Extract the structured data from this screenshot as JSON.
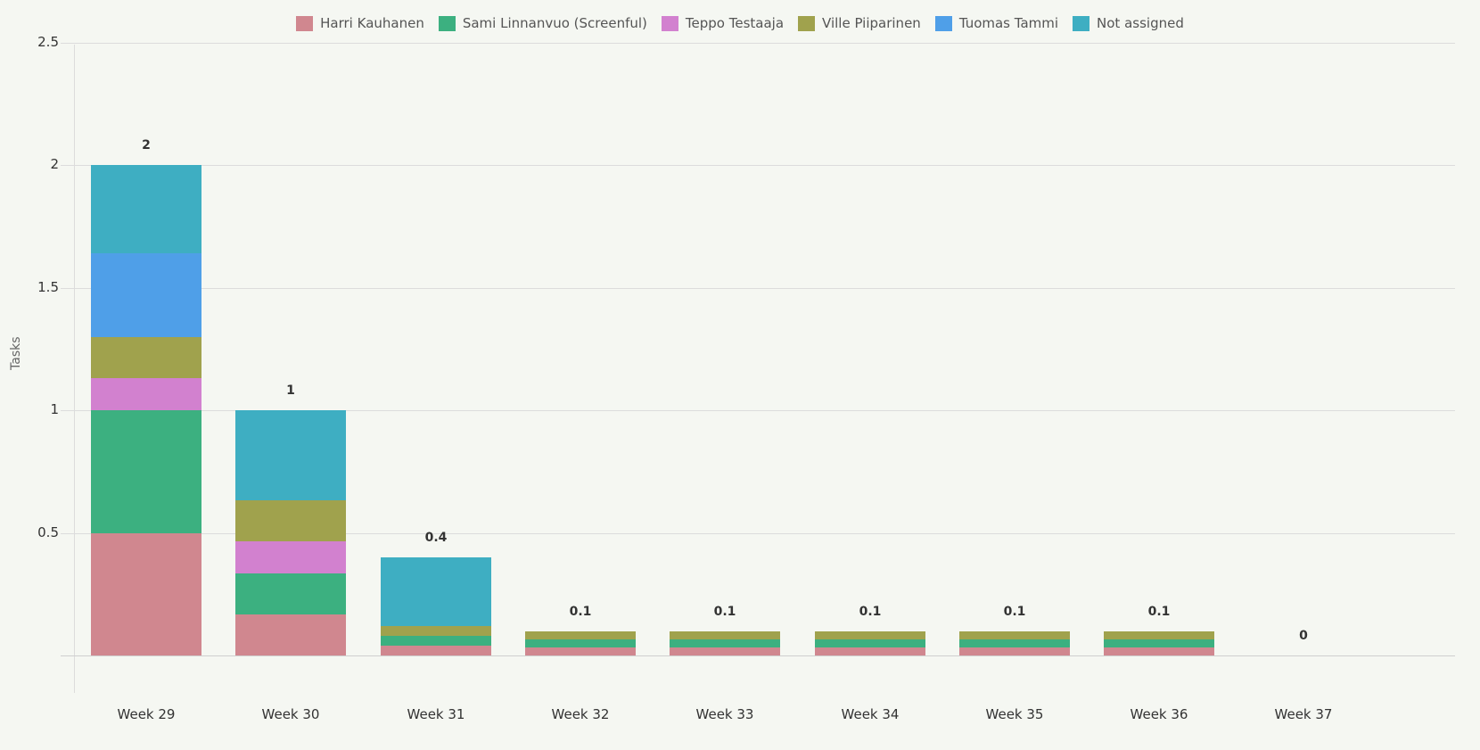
{
  "chart_data": {
    "type": "bar",
    "stacked": true,
    "title": "",
    "xlabel": "",
    "ylabel": "Tasks",
    "ylim": [
      0,
      2.5
    ],
    "yticks": [
      "0.5",
      "1",
      "1.5",
      "2",
      "2.5"
    ],
    "grid": true,
    "legend_position": "top",
    "categories": [
      "Week 29",
      "Week 30",
      "Week 31",
      "Week 32",
      "Week 33",
      "Week 34",
      "Week 35",
      "Week 36",
      "Week 37"
    ],
    "totals": [
      "2",
      "1",
      "0.4",
      "0.1",
      "0.1",
      "0.1",
      "0.1",
      "0.1",
      "0"
    ],
    "series": [
      {
        "name": "Harri Kauhanen",
        "color": "#d0878f",
        "values": [
          0.5,
          0.167,
          0.04,
          0.033,
          0.033,
          0.033,
          0.033,
          0.033,
          0
        ]
      },
      {
        "name": "Sami Linnanvuo (Screenful)",
        "color": "#3cb080",
        "values": [
          0.5,
          0.167,
          0.04,
          0.033,
          0.033,
          0.033,
          0.033,
          0.033,
          0
        ]
      },
      {
        "name": "Teppo Testaaja",
        "color": "#d281cf",
        "values": [
          0.133,
          0.133,
          0,
          0,
          0,
          0,
          0,
          0,
          0
        ]
      },
      {
        "name": "Ville Piiparinen",
        "color": "#a0a24d",
        "values": [
          0.167,
          0.167,
          0.04,
          0.033,
          0.033,
          0.033,
          0.033,
          0.033,
          0
        ]
      },
      {
        "name": "Tuomas Tammi",
        "color": "#4f9fe8",
        "values": [
          0.343,
          0,
          0,
          0,
          0,
          0,
          0,
          0,
          0
        ]
      },
      {
        "name": "Not assigned",
        "color": "#3eaec2",
        "values": [
          0.357,
          0.366,
          0.28,
          0,
          0,
          0,
          0,
          0,
          0
        ]
      }
    ]
  }
}
